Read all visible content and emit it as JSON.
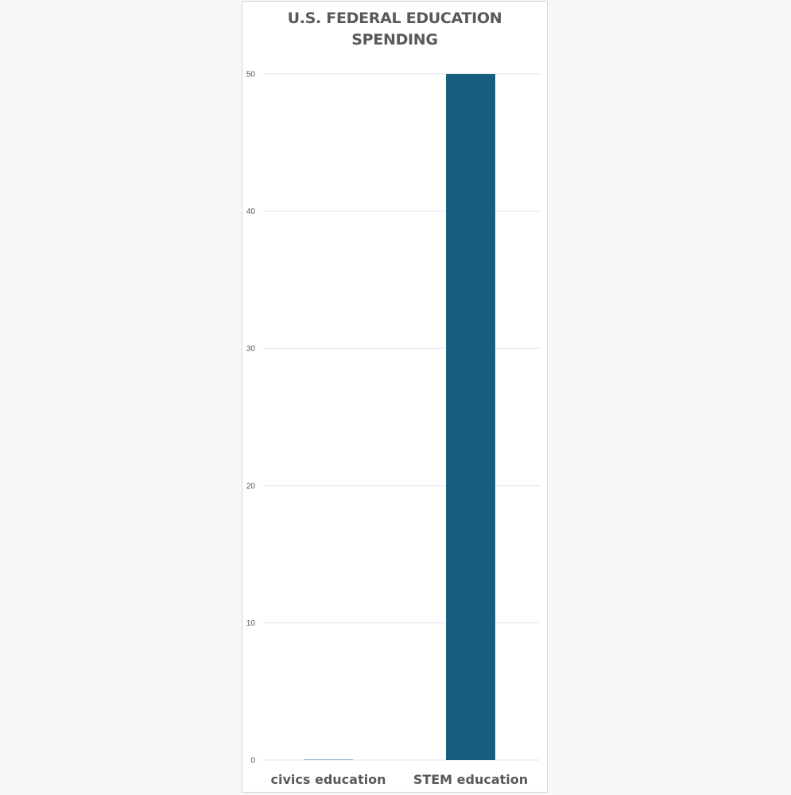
{
  "chart_data": {
    "type": "bar",
    "title": "U.S. FEDERAL EDUCATION SPENDING",
    "title_lines": [
      "U.S. FEDERAL EDUCATION",
      "SPENDING"
    ],
    "categories": [
      "civics education",
      "STEM education"
    ],
    "values": [
      0.05,
      50
    ],
    "xlabel": "",
    "ylabel": "",
    "ylim": [
      0,
      50
    ],
    "yticks": [
      "0",
      "10",
      "20",
      "30",
      "40",
      "50"
    ],
    "grid": true,
    "legend": "none",
    "bar_colors": [
      "#9db5cf",
      "#175f7f"
    ],
    "gridline_color": "#e3e6e8"
  }
}
